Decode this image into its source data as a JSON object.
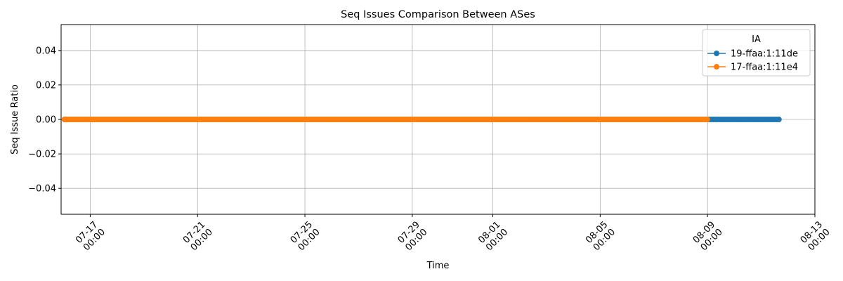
{
  "chart_data": {
    "type": "line",
    "title": "Seq Issues Comparison Between ASes",
    "xlabel": "Time",
    "ylabel": "Seq Issue Ratio",
    "x_type": "date",
    "x_range": [
      "2024-07-15T22:00",
      "2024-08-13T00:00"
    ],
    "ylim": [
      -0.055,
      0.055
    ],
    "x_ticks": [
      {
        "date": "2024-07-17T00:00",
        "line1": "07-17",
        "line2": "00:00"
      },
      {
        "date": "2024-07-21T00:00",
        "line1": "07-21",
        "line2": "00:00"
      },
      {
        "date": "2024-07-25T00:00",
        "line1": "07-25",
        "line2": "00:00"
      },
      {
        "date": "2024-07-29T00:00",
        "line1": "07-29",
        "line2": "00:00"
      },
      {
        "date": "2024-08-01T00:00",
        "line1": "08-01",
        "line2": "00:00"
      },
      {
        "date": "2024-08-05T00:00",
        "line1": "08-05",
        "line2": "00:00"
      },
      {
        "date": "2024-08-09T00:00",
        "line1": "08-09",
        "line2": "00:00"
      },
      {
        "date": "2024-08-13T00:00",
        "line1": "08-13",
        "line2": "00:00"
      }
    ],
    "y_ticks": [
      {
        "value": 0.04,
        "label": "0.04"
      },
      {
        "value": 0.02,
        "label": "0.02"
      },
      {
        "value": 0.0,
        "label": "0.00"
      },
      {
        "value": -0.02,
        "label": "−0.02"
      },
      {
        "value": -0.04,
        "label": "−0.04"
      }
    ],
    "grid": true,
    "legend": {
      "title": "IA",
      "position": "top-right"
    },
    "series": [
      {
        "name": "19-ffaa:1:11de",
        "color": "#1f77b4",
        "start": "2024-07-16T01:00",
        "end": "2024-08-11T16:00",
        "value": 0.0
      },
      {
        "name": "17-ffaa:1:11e4",
        "color": "#ff7f0e",
        "start": "2024-07-16T01:00",
        "end": "2024-08-09T00:00",
        "value": 0.0
      }
    ]
  }
}
